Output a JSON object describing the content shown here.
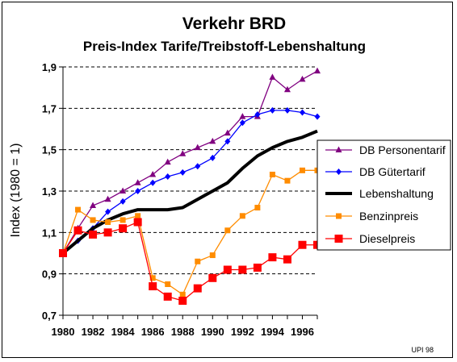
{
  "chart_data": {
    "type": "line",
    "title": "Verkehr BRD",
    "subtitle": "Preis-Index Tarife/Treibstoff-Lebenshaltung",
    "xlabel": "",
    "ylabel": "Index (1980 = 1)",
    "credit": "UPI 98",
    "xlim": [
      1980,
      1997
    ],
    "ylim": [
      0.7,
      1.9
    ],
    "y_ticks": [
      0.7,
      0.9,
      1.1,
      1.3,
      1.5,
      1.7,
      1.9
    ],
    "y_tick_labels": [
      "0,7",
      "0,9",
      "1,1",
      "1,3",
      "1,5",
      "1,7",
      "1,9"
    ],
    "x_ticks": [
      1980,
      1982,
      1984,
      1986,
      1988,
      1990,
      1992,
      1994,
      1996
    ],
    "x_tick_labels": [
      "1980",
      "1982",
      "1984",
      "1986",
      "1988",
      "1990",
      "1992",
      "1994",
      "1996"
    ],
    "grid": "horizontal dashed",
    "legend_position": "right",
    "x": [
      1980,
      1981,
      1982,
      1983,
      1984,
      1985,
      1986,
      1987,
      1988,
      1989,
      1990,
      1991,
      1992,
      1993,
      1994,
      1995,
      1996,
      1997
    ],
    "series": [
      {
        "name": "DB Personentarif",
        "color": "#800080",
        "marker": "triangle",
        "values": [
          1.0,
          1.12,
          1.23,
          1.26,
          1.3,
          1.34,
          1.38,
          1.44,
          1.48,
          1.51,
          1.54,
          1.58,
          1.66,
          1.66,
          1.85,
          1.79,
          1.84,
          1.88
        ]
      },
      {
        "name": "DB Gütertarif",
        "color": "#0000ff",
        "marker": "diamond",
        "values": [
          1.0,
          1.06,
          1.12,
          1.2,
          1.25,
          1.3,
          1.34,
          1.37,
          1.39,
          1.42,
          1.46,
          1.54,
          1.63,
          1.67,
          1.69,
          1.69,
          1.68,
          1.66
        ]
      },
      {
        "name": "Lebenshaltung",
        "color": "#000000",
        "marker": "none",
        "values": [
          1.0,
          1.06,
          1.12,
          1.16,
          1.19,
          1.21,
          1.21,
          1.21,
          1.22,
          1.26,
          1.3,
          1.34,
          1.41,
          1.47,
          1.51,
          1.54,
          1.56,
          1.59
        ]
      },
      {
        "name": "Benzinpreis",
        "color": "#ff8c00",
        "marker": "square",
        "values": [
          1.0,
          1.21,
          1.16,
          1.15,
          1.16,
          1.18,
          0.88,
          0.85,
          0.8,
          0.96,
          0.99,
          1.11,
          1.18,
          1.22,
          1.38,
          1.35,
          1.4,
          1.4
        ]
      },
      {
        "name": "Dieselpreis",
        "color": "#ff0000",
        "marker": "bigsquare",
        "values": [
          1.0,
          1.11,
          1.09,
          1.1,
          1.12,
          1.15,
          0.84,
          0.79,
          0.77,
          0.83,
          0.88,
          0.92,
          0.92,
          0.93,
          0.98,
          0.97,
          1.04,
          1.04
        ]
      }
    ]
  }
}
